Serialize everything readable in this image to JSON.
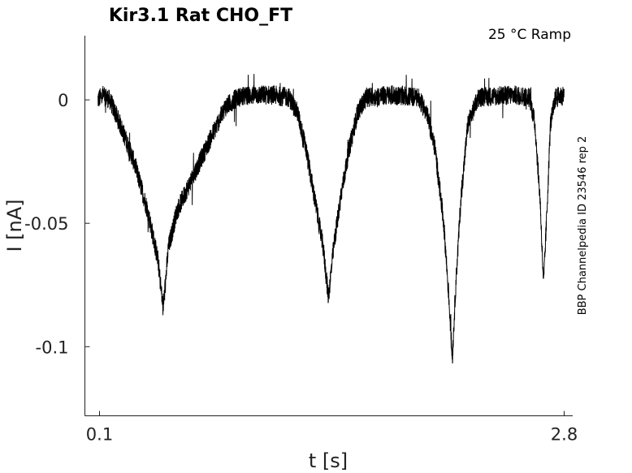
{
  "chart_data": {
    "type": "line",
    "title": "Kir3.1  Rat  CHO_FT",
    "subtitle": "25 °C  Ramp",
    "annotation": "BBP Channelpedia ID 23546 rep 2",
    "xlabel": "t [s]",
    "ylabel": "I [nA]",
    "xlim": [
      0.1,
      2.8
    ],
    "ylim": [
      -0.128,
      0.026
    ],
    "x_ticks": [
      {
        "value": 0.1,
        "label": "0.1"
      },
      {
        "value": 2.8,
        "label": "2.8"
      }
    ],
    "y_ticks": [
      {
        "value": 0,
        "label": "0"
      },
      {
        "value": -0.05,
        "label": "-0.05"
      },
      {
        "value": -0.1,
        "label": "-0.1"
      }
    ],
    "grid": false,
    "noise_amplitude": 0.004,
    "series": [
      {
        "color": "#000000",
        "points": [
          [
            0.09,
            0.0
          ],
          [
            0.12,
            0.002
          ],
          [
            0.16,
            0.0
          ],
          [
            0.22,
            -0.01
          ],
          [
            0.3,
            -0.025
          ],
          [
            0.38,
            -0.045
          ],
          [
            0.44,
            -0.065
          ],
          [
            0.47,
            -0.085
          ],
          [
            0.5,
            -0.06
          ],
          [
            0.55,
            -0.045
          ],
          [
            0.65,
            -0.03
          ],
          [
            0.75,
            -0.015
          ],
          [
            0.83,
            -0.003
          ],
          [
            0.9,
            0.001
          ],
          [
            1.0,
            0.002
          ],
          [
            1.1,
            0.002
          ],
          [
            1.2,
            0.001
          ],
          [
            1.25,
            -0.005
          ],
          [
            1.3,
            -0.02
          ],
          [
            1.35,
            -0.04
          ],
          [
            1.4,
            -0.06
          ],
          [
            1.43,
            -0.08
          ],
          [
            1.46,
            -0.06
          ],
          [
            1.5,
            -0.04
          ],
          [
            1.55,
            -0.02
          ],
          [
            1.6,
            -0.005
          ],
          [
            1.65,
            0.001
          ],
          [
            1.8,
            0.002
          ],
          [
            1.95,
            0.001
          ],
          [
            2.0,
            -0.005
          ],
          [
            2.05,
            -0.02
          ],
          [
            2.1,
            -0.05
          ],
          [
            2.13,
            -0.08
          ],
          [
            2.15,
            -0.105
          ],
          [
            2.17,
            -0.075
          ],
          [
            2.2,
            -0.04
          ],
          [
            2.24,
            -0.01
          ],
          [
            2.3,
            0.001
          ],
          [
            2.5,
            0.002
          ],
          [
            2.6,
            0.001
          ],
          [
            2.63,
            -0.01
          ],
          [
            2.66,
            -0.04
          ],
          [
            2.68,
            -0.075
          ],
          [
            2.7,
            -0.045
          ],
          [
            2.72,
            -0.01
          ],
          [
            2.75,
            0.001
          ],
          [
            2.8,
            0.002
          ]
        ]
      }
    ]
  }
}
